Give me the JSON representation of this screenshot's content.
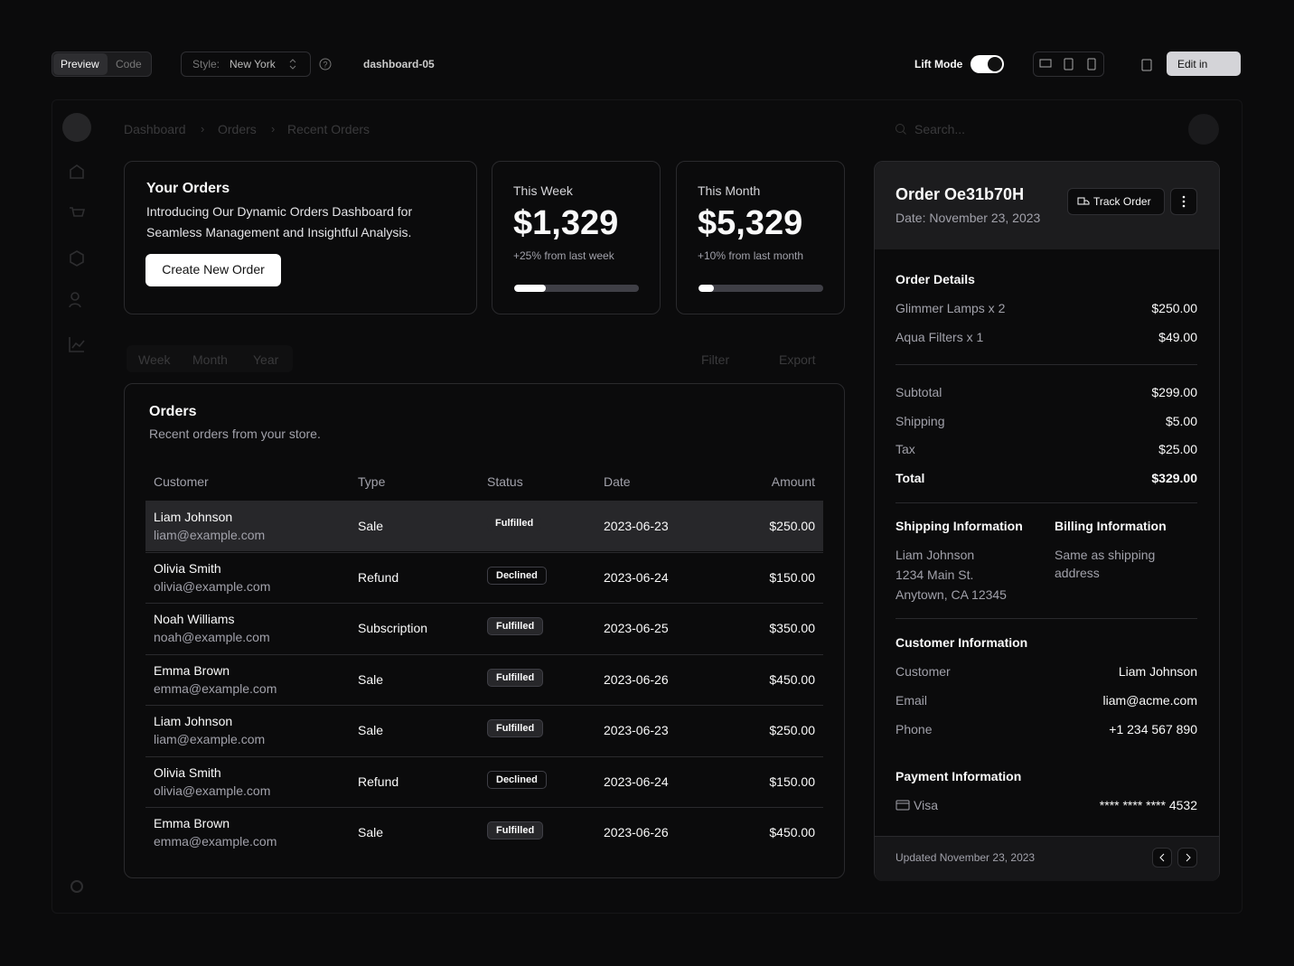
{
  "toolbar": {
    "preview": "Preview",
    "code": "Code",
    "style_label": "Style:",
    "style_value": "New York",
    "page_name": "dashboard-05",
    "lift_mode": "Lift Mode",
    "edit": "Edit in"
  },
  "breadcrumb": [
    "Dashboard",
    "Orders",
    "Recent Orders"
  ],
  "search": "Search...",
  "intro": {
    "title": "Your Orders",
    "description_1": "Introducing Our Dynamic Orders Dashboard for",
    "description_2": "Seamless Management and Insightful Analysis.",
    "button": "Create New Order"
  },
  "stats": [
    {
      "label": "This Week",
      "value": "$1,329",
      "change": "+25% from last week",
      "progress": 25
    },
    {
      "label": "This Month",
      "value": "$5,329",
      "change": "+10% from last month",
      "progress": 12
    }
  ],
  "tabs": [
    "Week",
    "Month",
    "Year"
  ],
  "filter": "Filter",
  "export": "Export",
  "orders": {
    "title": "Orders",
    "subtitle": "Recent orders from your store.",
    "columns": [
      "Customer",
      "Type",
      "Status",
      "Date",
      "Amount"
    ],
    "rows": [
      [
        "Liam Johnson",
        "liam@example.com",
        "Sale",
        "Fulfilled",
        "2023-06-23",
        "$250.00"
      ],
      [
        "Olivia Smith",
        "olivia@example.com",
        "Refund",
        "Declined",
        "2023-06-24",
        "$150.00"
      ],
      [
        "Noah Williams",
        "noah@example.com",
        "Subscription",
        "Fulfilled",
        "2023-06-25",
        "$350.00"
      ],
      [
        "Emma Brown",
        "emma@example.com",
        "Sale",
        "Fulfilled",
        "2023-06-26",
        "$450.00"
      ],
      [
        "Liam Johnson",
        "liam@example.com",
        "Sale",
        "Fulfilled",
        "2023-06-23",
        "$250.00"
      ],
      [
        "Olivia Smith",
        "olivia@example.com",
        "Refund",
        "Declined",
        "2023-06-24",
        "$150.00"
      ],
      [
        "Emma Brown",
        "emma@example.com",
        "Sale",
        "Fulfilled",
        "2023-06-26",
        "$450.00"
      ]
    ]
  },
  "order": {
    "title": "Order Oe31b70H",
    "date": "Date: November 23, 2023",
    "track": "Track Order",
    "details_title": "Order Details",
    "items": [
      [
        "Glimmer Lamps x 2",
        "$250.00"
      ],
      [
        "Aqua Filters x 1",
        "$49.00"
      ]
    ],
    "totals": [
      [
        "Subtotal",
        "$299.00"
      ],
      [
        "Shipping",
        "$5.00"
      ],
      [
        "Tax",
        "$25.00"
      ],
      [
        "Total",
        "$329.00"
      ]
    ],
    "shipping_title": "Shipping Information",
    "shipping": [
      "Liam Johnson",
      "1234 Main St.",
      "Anytown, CA 12345"
    ],
    "billing_title": "Billing Information",
    "billing": [
      "Same as shipping",
      "address"
    ],
    "customer_title": "Customer Information",
    "customer": [
      [
        "Customer",
        "Liam Johnson"
      ],
      [
        "Email",
        "liam@acme.com"
      ],
      [
        "Phone",
        "+1 234 567 890"
      ]
    ],
    "payment_title": "Payment Information",
    "payment": [
      "Visa",
      "**** **** **** 4532"
    ],
    "updated": "Updated November 23, 2023"
  }
}
